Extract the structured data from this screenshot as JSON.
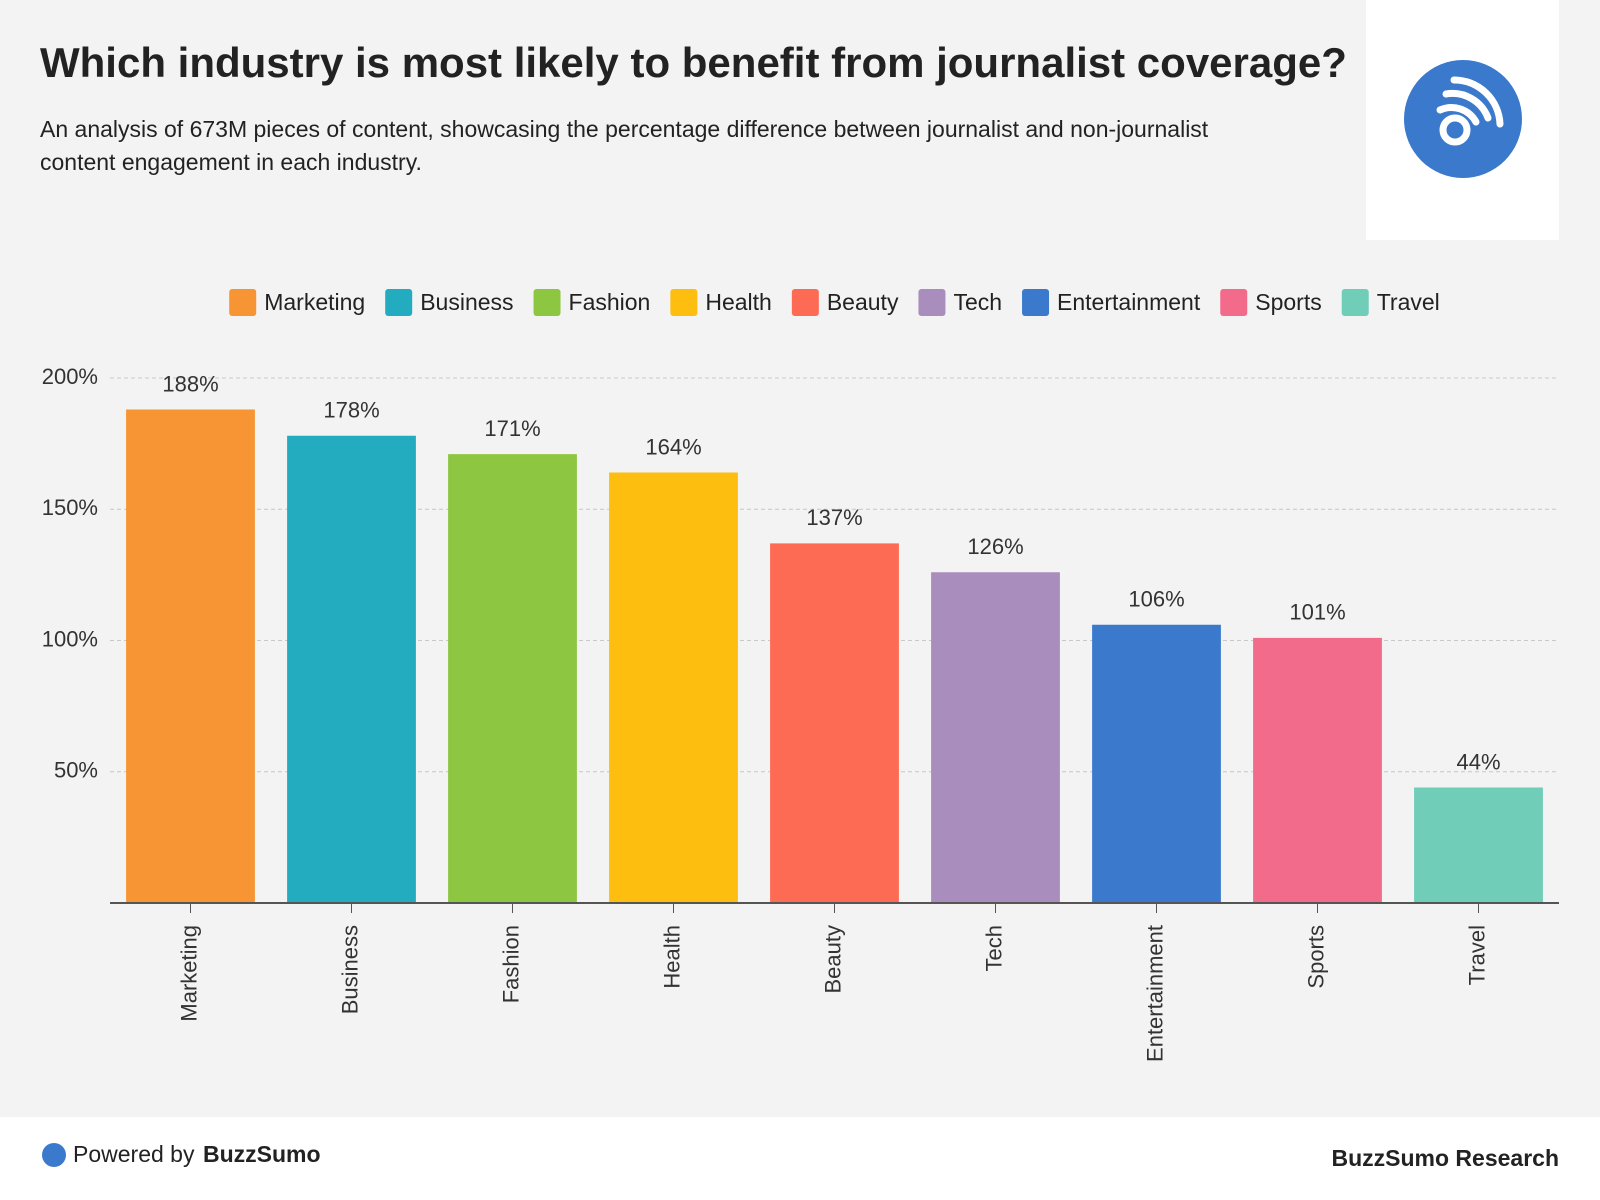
{
  "chart_data": {
    "type": "bar",
    "title": "Which industry is most likely to benefit from journalist coverage?",
    "subtitle": [
      "An analysis of 673M pieces of content, showcasing the percentage difference between journalist and non-journalist",
      "content engagement in each industry."
    ],
    "categories": [
      "Marketing",
      "Business",
      "Fashion",
      "Health",
      "Beauty",
      "Tech",
      "Entertainment",
      "Sports",
      "Travel"
    ],
    "values": [
      188,
      178,
      171,
      164,
      137,
      126,
      106,
      101,
      44
    ],
    "value_labels": [
      "188%",
      "178%",
      "171%",
      "164%",
      "137%",
      "126%",
      "106%",
      "101%",
      "44%"
    ],
    "colors": [
      "#f79433",
      "#23acbf",
      "#8dc641",
      "#fdbe10",
      "#fe6b55",
      "#a98dbc",
      "#3b79cc",
      "#f26b8a",
      "#6fcdb8"
    ],
    "ylim": [
      0,
      200
    ],
    "yticks": [
      {
        "value": 50,
        "label": "50%"
      },
      {
        "value": 100,
        "label": "100%"
      },
      {
        "value": 150,
        "label": "150%"
      },
      {
        "value": 200,
        "label": "200%"
      }
    ],
    "grid": true,
    "legend": "top"
  },
  "footer": {
    "powered_by": "Powered by",
    "brand": "BuzzSumo",
    "credit": "BuzzSumo Research"
  }
}
